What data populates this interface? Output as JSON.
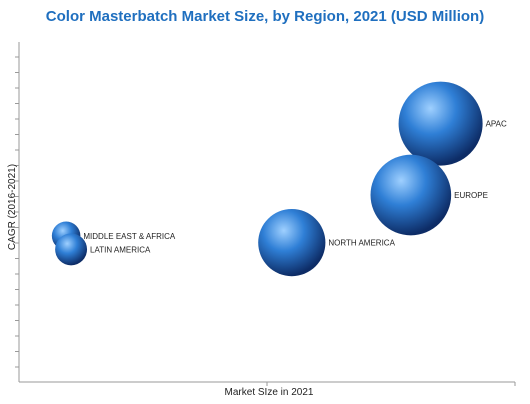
{
  "chart_data": {
    "type": "bubble",
    "title": "Color Masterbatch Market Size, by Region, 2021 (USD Million)",
    "xlabel": "Market SIze in 2021",
    "ylabel": "CAGR (2016-2021)",
    "grid": false,
    "series": [
      {
        "name": "APAC",
        "x": 0.85,
        "y": 0.76,
        "size": 1.0
      },
      {
        "name": "EUROPE",
        "x": 0.79,
        "y": 0.55,
        "size": 0.96
      },
      {
        "name": "NORTH AMERICA",
        "x": 0.55,
        "y": 0.41,
        "size": 0.8
      },
      {
        "name": "MIDDLE EAST & AFRICA",
        "x": 0.095,
        "y": 0.43,
        "size": 0.34
      },
      {
        "name": "LATIN AMERICA",
        "x": 0.105,
        "y": 0.39,
        "size": 0.38
      }
    ],
    "colors": {
      "title": "#1f6fbf",
      "bubble_light": "#9fd0ff",
      "bubble_mid": "#2f7fd6",
      "bubble_dark": "#0d2c66"
    }
  }
}
